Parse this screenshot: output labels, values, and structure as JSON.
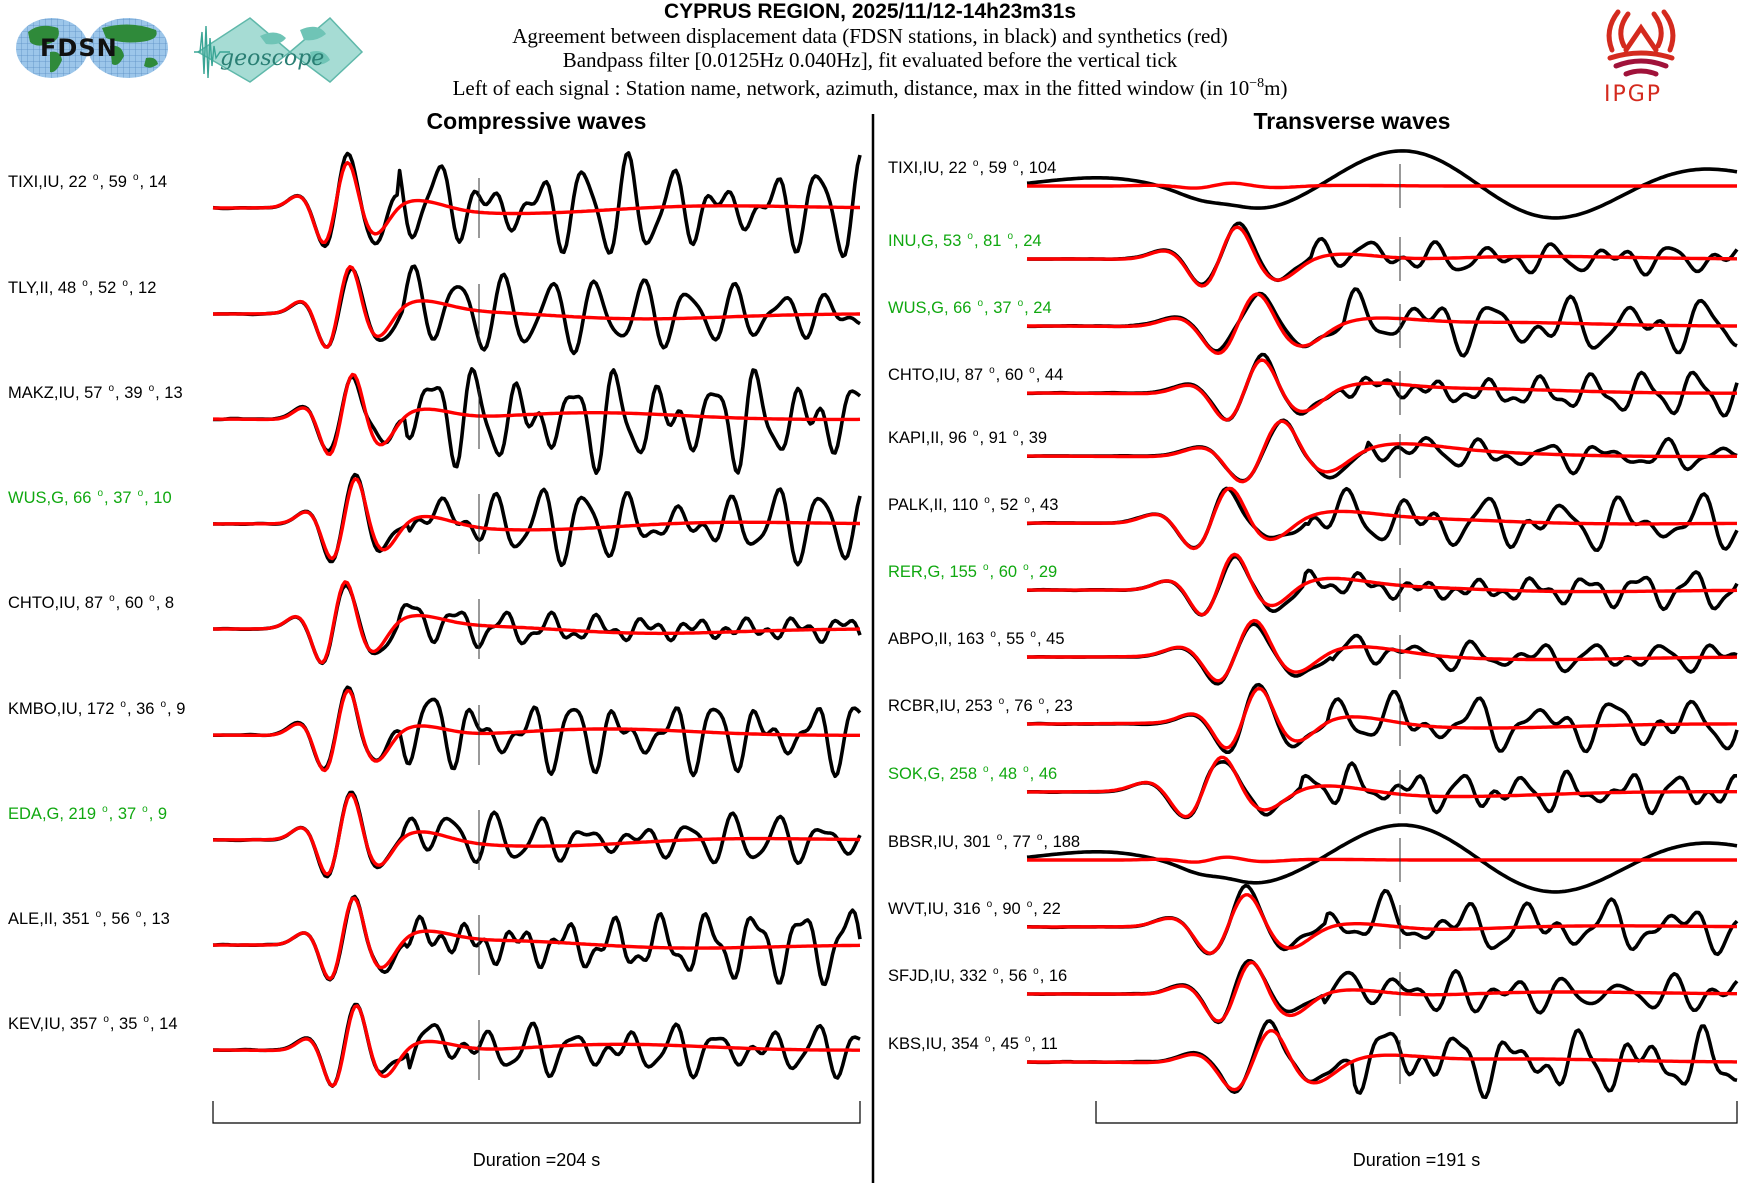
{
  "header": {
    "title": "CYPRUS REGION, 2025/11/12-14h23m31s",
    "line1": "Agreement between displacement data (FDSN stations, in black) and synthetics (red)",
    "line2": "Bandpass filter [0.0125Hz 0.040Hz], fit evaluated before the vertical tick",
    "line3_prefix": "Left of each signal : Station name, network, azimuth, distance, max in the fitted window (in 10",
    "line3_exp": "−8",
    "line3_suffix": "m)"
  },
  "logos": {
    "fdsn": "FDSN",
    "geoscope": "geoscope",
    "ipgp": "IPGP"
  },
  "colors": {
    "data": "#000000",
    "synthetic": "#ff0000",
    "geoscope_station": "#10a810",
    "default_station": "#000000"
  },
  "chart_data": [
    {
      "type": "line",
      "title": "Compressive waves",
      "xlabel": "Duration =204 s",
      "duration_s": 204,
      "series_legend": [
        {
          "name": "data",
          "color": "#000000"
        },
        {
          "name": "synthetics",
          "color": "#ff0000"
        }
      ],
      "stations": [
        {
          "name": "TIXI",
          "network": "IU",
          "azimuth": 22,
          "distance": 59,
          "max": 14,
          "geoscope": false
        },
        {
          "name": "TLY",
          "network": "II",
          "azimuth": 48,
          "distance": 52,
          "max": 12,
          "geoscope": false
        },
        {
          "name": "MAKZ",
          "network": "IU",
          "azimuth": 57,
          "distance": 39,
          "max": 13,
          "geoscope": false
        },
        {
          "name": "WUS",
          "network": "G",
          "azimuth": 66,
          "distance": 37,
          "max": 10,
          "geoscope": true
        },
        {
          "name": "CHTO",
          "network": "IU",
          "azimuth": 87,
          "distance": 60,
          "max": 8,
          "geoscope": false
        },
        {
          "name": "KMBO",
          "network": "IU",
          "azimuth": 172,
          "distance": 36,
          "max": 9,
          "geoscope": false
        },
        {
          "name": "EDA",
          "network": "G",
          "azimuth": 219,
          "distance": 37,
          "max": 9,
          "geoscope": true
        },
        {
          "name": "ALE",
          "network": "II",
          "azimuth": 351,
          "distance": 56,
          "max": 13,
          "geoscope": false
        },
        {
          "name": "KEV",
          "network": "IU",
          "azimuth": 357,
          "distance": 35,
          "max": 14,
          "geoscope": false
        }
      ],
      "fit_window_end_fraction": 0.41
    },
    {
      "type": "line",
      "title": "Transverse waves",
      "xlabel": "Duration =191 s",
      "duration_s": 191,
      "series_legend": [
        {
          "name": "data",
          "color": "#000000"
        },
        {
          "name": "synthetics",
          "color": "#ff0000"
        }
      ],
      "stations": [
        {
          "name": "TIXI",
          "network": "IU",
          "azimuth": 22,
          "distance": 59,
          "max": 104,
          "geoscope": false
        },
        {
          "name": "INU",
          "network": "G",
          "azimuth": 53,
          "distance": 81,
          "max": 24,
          "geoscope": true
        },
        {
          "name": "WUS",
          "network": "G",
          "azimuth": 66,
          "distance": 37,
          "max": 24,
          "geoscope": true
        },
        {
          "name": "CHTO",
          "network": "IU",
          "azimuth": 87,
          "distance": 60,
          "max": 44,
          "geoscope": false
        },
        {
          "name": "KAPI",
          "network": "II",
          "azimuth": 96,
          "distance": 91,
          "max": 39,
          "geoscope": false
        },
        {
          "name": "PALK",
          "network": "II",
          "azimuth": 110,
          "distance": 52,
          "max": 43,
          "geoscope": false
        },
        {
          "name": "RER",
          "network": "G",
          "azimuth": 155,
          "distance": 60,
          "max": 29,
          "geoscope": true
        },
        {
          "name": "ABPO",
          "network": "II",
          "azimuth": 163,
          "distance": 55,
          "max": 45,
          "geoscope": false
        },
        {
          "name": "RCBR",
          "network": "IU",
          "azimuth": 253,
          "distance": 76,
          "max": 23,
          "geoscope": false
        },
        {
          "name": "SOK",
          "network": "G",
          "azimuth": 258,
          "distance": 48,
          "max": 46,
          "geoscope": true
        },
        {
          "name": "BBSR",
          "network": "IU",
          "azimuth": 301,
          "distance": 77,
          "max": 188,
          "geoscope": false
        },
        {
          "name": "WVT",
          "network": "IU",
          "azimuth": 316,
          "distance": 90,
          "max": 22,
          "geoscope": false
        },
        {
          "name": "SFJD",
          "network": "IU",
          "azimuth": 332,
          "distance": 56,
          "max": 16,
          "geoscope": false
        },
        {
          "name": "KBS",
          "network": "IU",
          "azimuth": 354,
          "distance": 45,
          "max": 11,
          "geoscope": false
        }
      ],
      "fit_window_end_fraction": 0.58
    }
  ]
}
